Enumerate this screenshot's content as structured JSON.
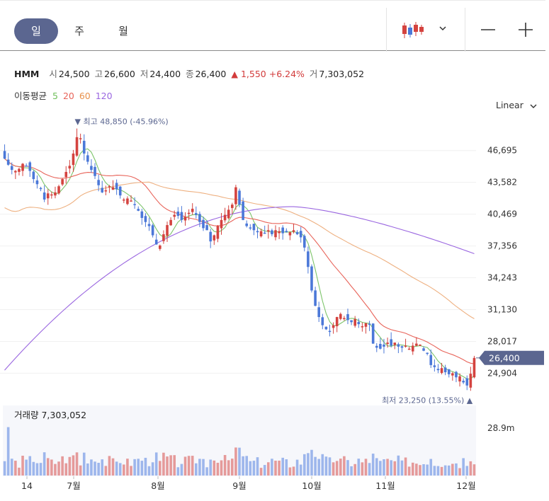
{
  "tabs": [
    {
      "label": "일",
      "active": true
    },
    {
      "label": "주",
      "active": false
    },
    {
      "label": "월",
      "active": false
    }
  ],
  "quote": {
    "name": "HMM",
    "open_label": "시",
    "open": "24,500",
    "high_label": "고",
    "high": "26,600",
    "low_label": "저",
    "low": "24,400",
    "close_label": "종",
    "close": "26,400",
    "change_arrow": "▲",
    "change": "1,550",
    "change_pct": "+6.24%",
    "volume_label": "거",
    "volume": "7,303,052"
  },
  "moving_average": {
    "label": "이동평균",
    "periods": [
      {
        "value": "5",
        "color": "#6fbf5a"
      },
      {
        "value": "20",
        "color": "#e8645a"
      },
      {
        "value": "60",
        "color": "#eea870"
      },
      {
        "value": "120",
        "color": "#9a66e0"
      }
    ]
  },
  "scale_mode": "Linear",
  "colors": {
    "up": "#d4433f",
    "down": "#4b78d8",
    "up_vol": "#e59a9a",
    "down_vol": "#9db6ec",
    "accent": "#5b6690"
  },
  "chart_data": {
    "type": "candlestick",
    "x_ticks": [
      "14",
      "7월",
      "8월",
      "9월",
      "10월",
      "11월",
      "12월"
    ],
    "y_ticks": [
      46695,
      43582,
      40469,
      37356,
      34243,
      31130,
      28017,
      24904
    ],
    "y_tick_labels": [
      "46,695",
      "43,582",
      "40,469",
      "37,356",
      "34,243",
      "31,130",
      "28,017",
      "24,904"
    ],
    "ylim": [
      22300,
      50000
    ],
    "current_price": 26400,
    "current_price_label": "26,400",
    "high_marker": {
      "label": "최고",
      "value": "48,850",
      "pct": "(-45.96%)",
      "arrow": "▼"
    },
    "low_marker": {
      "label": "최저",
      "value": "23,250",
      "pct": "(13.55%)",
      "arrow": "▲"
    },
    "volume": {
      "label": "거래량",
      "value": "7,303,052",
      "axis_label": "28.9m",
      "axis_value": 28900000
    },
    "closes": [
      45900,
      45300,
      44800,
      44700,
      44900,
      45400,
      45200,
      44700,
      43900,
      43400,
      43000,
      41900,
      42500,
      42400,
      42600,
      43200,
      43900,
      44600,
      45200,
      46400,
      48000,
      47900,
      46400,
      45600,
      44800,
      44200,
      43300,
      42600,
      42800,
      43200,
      43100,
      42900,
      42300,
      41900,
      42000,
      41800,
      41400,
      40800,
      40100,
      39700,
      39300,
      38400,
      37500,
      37400,
      38500,
      39400,
      39900,
      40400,
      40300,
      39900,
      40200,
      40600,
      41000,
      40400,
      39700,
      39100,
      38900,
      37800,
      38400,
      39300,
      39900,
      40400,
      40900,
      41400,
      43100,
      41400,
      39900,
      39300,
      39100,
      38900,
      38700,
      38800,
      38600,
      38900,
      38500,
      38900,
      38800,
      38600,
      38700,
      38700,
      38900,
      38500,
      38200,
      37200,
      35300,
      33000,
      31500,
      30400,
      29600,
      29200,
      29000,
      29600,
      30400,
      30700,
      30300,
      30100,
      29900,
      30200,
      29700,
      29500,
      29800,
      29700,
      27800,
      27400,
      27300,
      27500,
      27900,
      27600,
      27900,
      27500,
      27400,
      27600,
      27300,
      27600,
      27800,
      27700,
      27100,
      26900,
      25700,
      25500,
      25200,
      25400,
      25000,
      24800,
      24900,
      24500,
      24600,
      24000,
      23700,
      24850,
      26400
    ]
  }
}
